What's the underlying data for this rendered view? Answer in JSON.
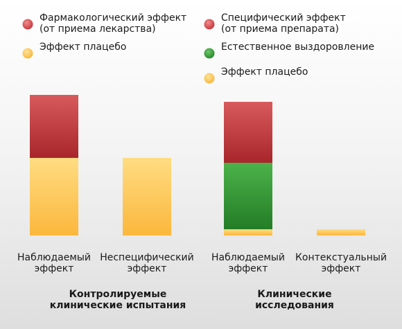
{
  "chart_data": {
    "type": "bar",
    "stacked": true,
    "legend": [
      {
        "label": "Фармакологический эффект",
        "sublabel": "(от приема лекарства)",
        "color": "#c8383c"
      },
      {
        "label": "Эффект плацебо",
        "sublabel": "",
        "color": "#fcc14a"
      },
      {
        "label": "Специфический эффект",
        "sublabel": "(от приема препарата)",
        "color": "#c8383c"
      },
      {
        "label": "Естественное выздоровление",
        "sublabel": "",
        "color": "#3a9a3a"
      },
      {
        "label": "Эффект плацебо",
        "sublabel": "",
        "color": "#fcc14a"
      }
    ],
    "bars": [
      {
        "category": [
          "Наблюдаемый",
          "эффект"
        ],
        "segments": [
          {
            "name": "Эффект плацебо",
            "value": 112,
            "color": "#fcc14a"
          },
          {
            "name": "Фармакологический эффект",
            "value": 91,
            "color": "#c8383c"
          }
        ]
      },
      {
        "category": [
          "Неспецифический",
          "эффект"
        ],
        "segments": [
          {
            "name": "Эффект плацебо",
            "value": 112,
            "color": "#fcc14a"
          }
        ]
      },
      {
        "category": [
          "Наблюдаемый",
          "эффект"
        ],
        "segments": [
          {
            "name": "Эффект плацебо",
            "value": 9,
            "color": "#fcc14a"
          },
          {
            "name": "Естественное выздоровление",
            "value": 96,
            "color": "#3a9a3a"
          },
          {
            "name": "Специфический эффект",
            "value": 88,
            "color": "#c8383c"
          }
        ]
      },
      {
        "category": [
          "Контекстуальный",
          "эффект"
        ],
        "segments": [
          {
            "name": "Эффект плацебо",
            "value": 9,
            "color": "#fcc14a"
          }
        ]
      }
    ],
    "groups": [
      {
        "label": [
          "Контролируемые",
          "клинические испытания"
        ],
        "bars": [
          0,
          1
        ]
      },
      {
        "label": [
          "Клинические",
          "исследования"
        ],
        "bars": [
          2,
          3
        ]
      }
    ],
    "ylim": [
      0,
      210
    ]
  }
}
